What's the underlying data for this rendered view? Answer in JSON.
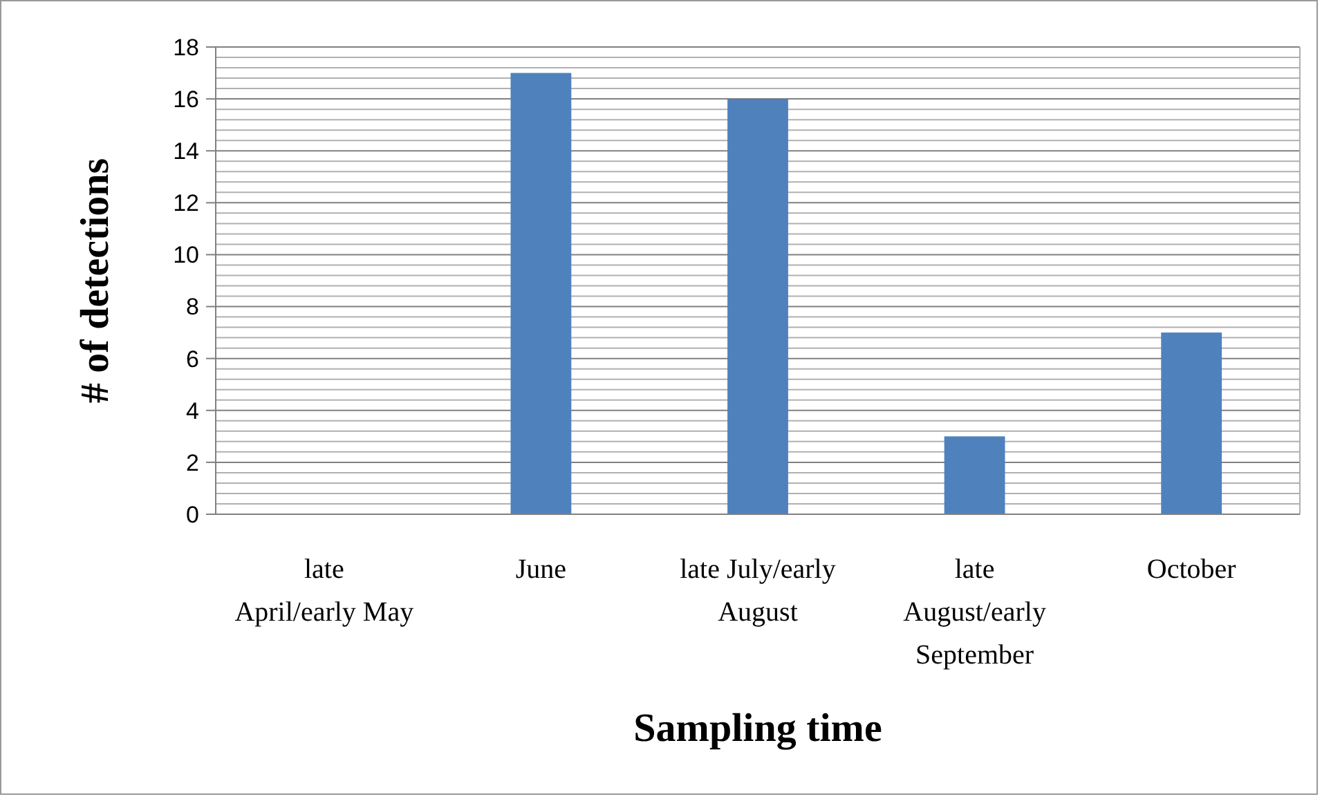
{
  "chart_data": {
    "type": "bar",
    "xlabel": "Sampling time",
    "ylabel": "# of detections",
    "categories": [
      "late April/early May",
      "June",
      "late July/early August",
      "late August/early September",
      "October"
    ],
    "values": [
      0,
      17,
      16,
      3,
      7
    ],
    "color": "#4f81bd",
    "ylim": [
      0,
      18
    ],
    "yticks": [
      0,
      2,
      4,
      6,
      8,
      10,
      12,
      14,
      16,
      18
    ],
    "grid": true
  }
}
